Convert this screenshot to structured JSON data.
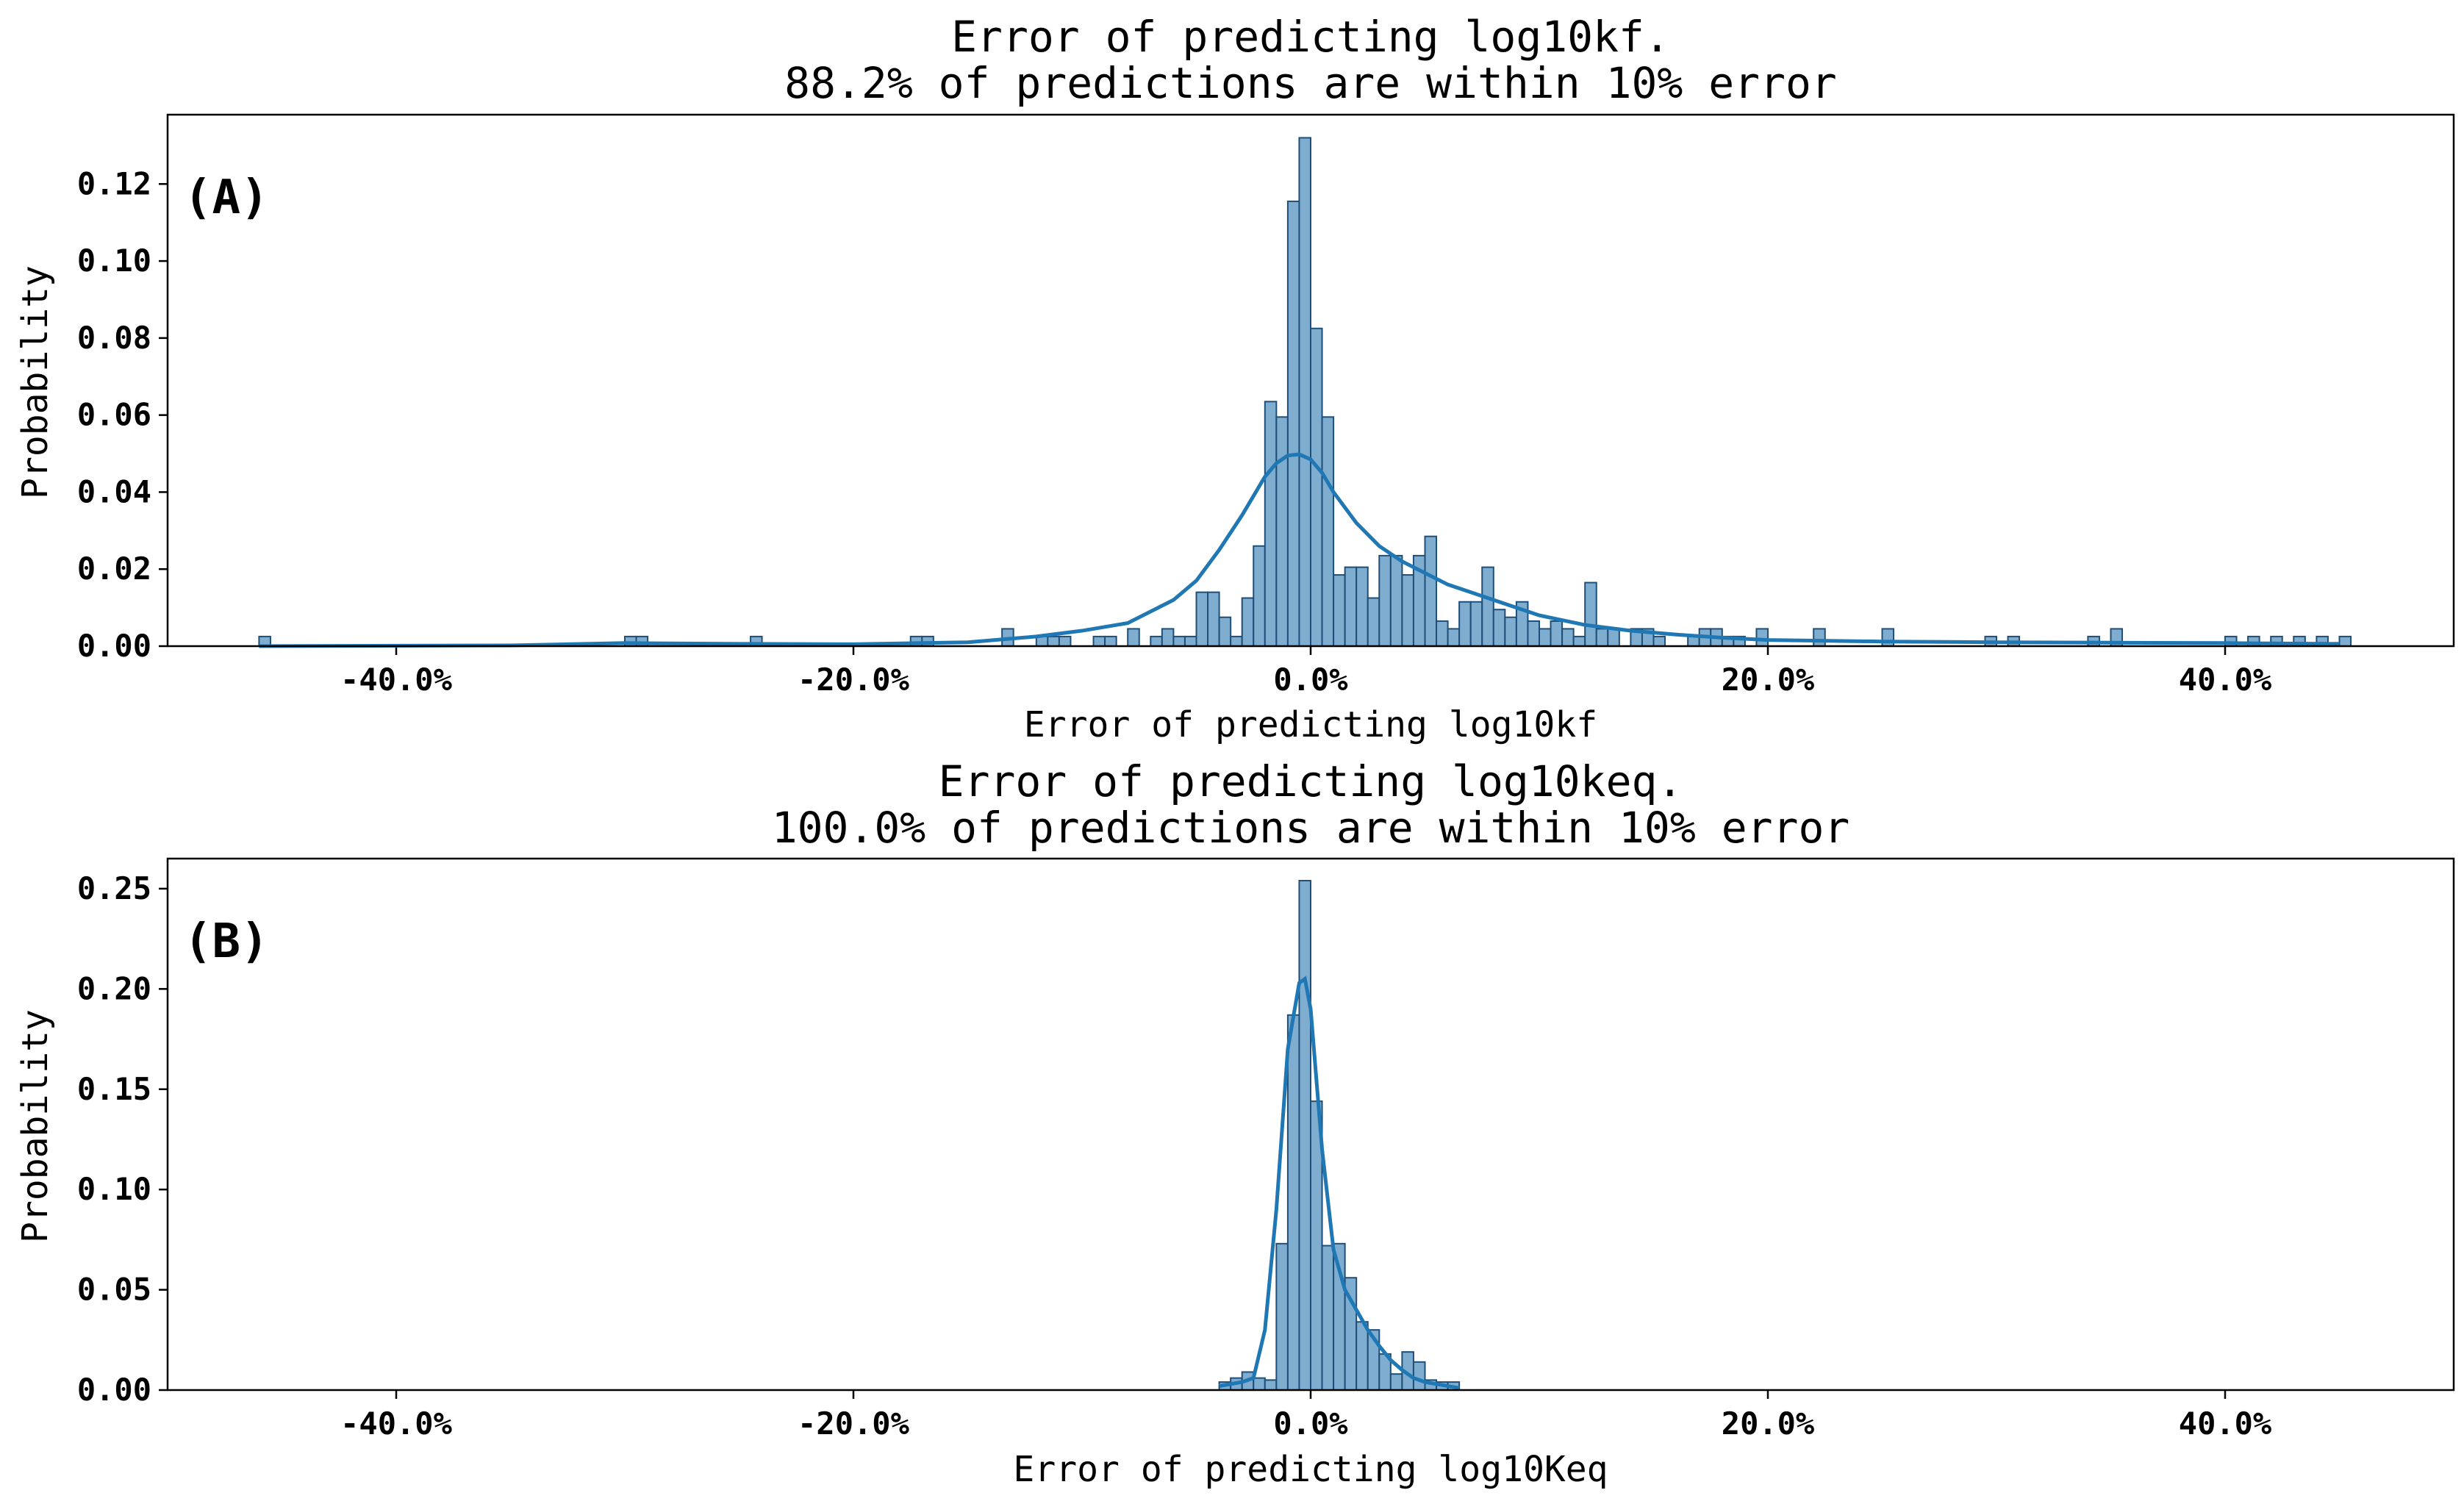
{
  "chart_data": [
    {
      "type": "bar",
      "panel_label": "(A)",
      "title_lines": [
        "Error of predicting log10kf.",
        "88.2% of predictions are within 10% error"
      ],
      "xlabel": "Error of predicting log10kf",
      "ylabel": "Probability",
      "xlim": [
        -50,
        50
      ],
      "ylim": [
        0,
        0.138
      ],
      "xticks": [
        -40,
        -20,
        0,
        20,
        40
      ],
      "xtick_labels": [
        "-40.0%",
        "-20.0%",
        "0.0%",
        "20.0%",
        "40.0%"
      ],
      "yticks": [
        0,
        0.02,
        0.04,
        0.06,
        0.08,
        0.1,
        0.12
      ],
      "ytick_labels": [
        "0.00",
        "0.02",
        "0.04",
        "0.06",
        "0.08",
        "0.10",
        "0.12"
      ],
      "bin_width": 0.5,
      "bins": [
        {
          "x": -46.0,
          "y": 0.0025
        },
        {
          "x": -30.0,
          "y": 0.0025
        },
        {
          "x": -29.5,
          "y": 0.0025
        },
        {
          "x": -24.5,
          "y": 0.0025
        },
        {
          "x": -17.5,
          "y": 0.0025
        },
        {
          "x": -17.0,
          "y": 0.0025
        },
        {
          "x": -13.5,
          "y": 0.0045
        },
        {
          "x": -12.0,
          "y": 0.0025
        },
        {
          "x": -11.5,
          "y": 0.0025
        },
        {
          "x": -11.0,
          "y": 0.0025
        },
        {
          "x": -9.5,
          "y": 0.0025
        },
        {
          "x": -9.0,
          "y": 0.0025
        },
        {
          "x": -8.0,
          "y": 0.0045
        },
        {
          "x": -7.0,
          "y": 0.0025
        },
        {
          "x": -6.5,
          "y": 0.0045
        },
        {
          "x": -6.0,
          "y": 0.0025
        },
        {
          "x": -5.5,
          "y": 0.0025
        },
        {
          "x": -5.0,
          "y": 0.014
        },
        {
          "x": -4.5,
          "y": 0.014
        },
        {
          "x": -4.0,
          "y": 0.0075
        },
        {
          "x": -3.5,
          "y": 0.0025
        },
        {
          "x": -3.0,
          "y": 0.0125
        },
        {
          "x": -2.5,
          "y": 0.026
        },
        {
          "x": -2.0,
          "y": 0.0635
        },
        {
          "x": -1.5,
          "y": 0.0595
        },
        {
          "x": -1.0,
          "y": 0.1155
        },
        {
          "x": -0.5,
          "y": 0.132
        },
        {
          "x": 0.0,
          "y": 0.0825
        },
        {
          "x": 0.5,
          "y": 0.0595
        },
        {
          "x": 1.0,
          "y": 0.0185
        },
        {
          "x": 1.5,
          "y": 0.0205
        },
        {
          "x": 2.0,
          "y": 0.0205
        },
        {
          "x": 2.5,
          "y": 0.0125
        },
        {
          "x": 3.0,
          "y": 0.0235
        },
        {
          "x": 3.5,
          "y": 0.0235
        },
        {
          "x": 4.0,
          "y": 0.0185
        },
        {
          "x": 4.5,
          "y": 0.0235
        },
        {
          "x": 5.0,
          "y": 0.0285
        },
        {
          "x": 5.5,
          "y": 0.0065
        },
        {
          "x": 6.0,
          "y": 0.0045
        },
        {
          "x": 6.5,
          "y": 0.0115
        },
        {
          "x": 7.0,
          "y": 0.0115
        },
        {
          "x": 7.5,
          "y": 0.0205
        },
        {
          "x": 8.0,
          "y": 0.0095
        },
        {
          "x": 8.5,
          "y": 0.0075
        },
        {
          "x": 9.0,
          "y": 0.0115
        },
        {
          "x": 9.5,
          "y": 0.0065
        },
        {
          "x": 10.0,
          "y": 0.0045
        },
        {
          "x": 10.5,
          "y": 0.0065
        },
        {
          "x": 11.0,
          "y": 0.0045
        },
        {
          "x": 11.5,
          "y": 0.0025
        },
        {
          "x": 12.0,
          "y": 0.0165
        },
        {
          "x": 12.5,
          "y": 0.0045
        },
        {
          "x": 13.0,
          "y": 0.0045
        },
        {
          "x": 14.0,
          "y": 0.0045
        },
        {
          "x": 14.5,
          "y": 0.0045
        },
        {
          "x": 15.0,
          "y": 0.0025
        },
        {
          "x": 16.5,
          "y": 0.0025
        },
        {
          "x": 17.0,
          "y": 0.0045
        },
        {
          "x": 17.5,
          "y": 0.0045
        },
        {
          "x": 18.0,
          "y": 0.0025
        },
        {
          "x": 18.5,
          "y": 0.0025
        },
        {
          "x": 19.5,
          "y": 0.0045
        },
        {
          "x": 22.0,
          "y": 0.0045
        },
        {
          "x": 25.0,
          "y": 0.0045
        },
        {
          "x": 29.5,
          "y": 0.0025
        },
        {
          "x": 30.5,
          "y": 0.0025
        },
        {
          "x": 34.0,
          "y": 0.0025
        },
        {
          "x": 35.0,
          "y": 0.0045
        },
        {
          "x": 40.0,
          "y": 0.0025
        },
        {
          "x": 41.0,
          "y": 0.0025
        },
        {
          "x": 42.0,
          "y": 0.0025
        },
        {
          "x": 43.0,
          "y": 0.0025
        },
        {
          "x": 44.0,
          "y": 0.0025
        },
        {
          "x": 45.0,
          "y": 0.0025
        }
      ],
      "kde": {
        "x": [
          -46,
          -35,
          -30,
          -25,
          -20,
          -15,
          -12,
          -10,
          -8,
          -6,
          -5,
          -4,
          -3,
          -2,
          -1.5,
          -1,
          -0.5,
          0,
          0.5,
          1,
          2,
          3,
          4,
          5,
          6,
          7,
          8,
          10,
          12,
          14,
          16,
          18,
          20,
          25,
          30,
          35,
          40,
          45
        ],
        "y": [
          0.0,
          0.0002,
          0.0008,
          0.0006,
          0.0005,
          0.001,
          0.0025,
          0.004,
          0.006,
          0.012,
          0.017,
          0.025,
          0.034,
          0.044,
          0.0475,
          0.0495,
          0.0498,
          0.0485,
          0.045,
          0.04,
          0.032,
          0.026,
          0.022,
          0.019,
          0.016,
          0.014,
          0.012,
          0.008,
          0.0055,
          0.004,
          0.003,
          0.0022,
          0.0016,
          0.0012,
          0.001,
          0.0009,
          0.0008,
          0.0006
        ]
      },
      "color": "#1f77b4"
    },
    {
      "type": "bar",
      "panel_label": "(B)",
      "title_lines": [
        "Error of predicting log10keq.",
        "100.0% of predictions are within 10% error"
      ],
      "xlabel": "Error of predicting log10Keq",
      "ylabel": "Probability",
      "xlim": [
        -50,
        50
      ],
      "ylim": [
        0,
        0.265
      ],
      "xticks": [
        -40,
        -20,
        0,
        20,
        40
      ],
      "xtick_labels": [
        "-40.0%",
        "-20.0%",
        "0.0%",
        "20.0%",
        "40.0%"
      ],
      "yticks": [
        0,
        0.05,
        0.1,
        0.15,
        0.2,
        0.25
      ],
      "ytick_labels": [
        "0.00",
        "0.05",
        "0.10",
        "0.15",
        "0.20",
        "0.25"
      ],
      "bin_width": 0.5,
      "bins": [
        {
          "x": -4.0,
          "y": 0.004
        },
        {
          "x": -3.5,
          "y": 0.006
        },
        {
          "x": -3.0,
          "y": 0.009
        },
        {
          "x": -2.5,
          "y": 0.006
        },
        {
          "x": -2.0,
          "y": 0.005
        },
        {
          "x": -1.5,
          "y": 0.073
        },
        {
          "x": -1.0,
          "y": 0.187
        },
        {
          "x": -0.5,
          "y": 0.254
        },
        {
          "x": 0.0,
          "y": 0.144
        },
        {
          "x": 0.5,
          "y": 0.072
        },
        {
          "x": 1.0,
          "y": 0.073
        },
        {
          "x": 1.5,
          "y": 0.056
        },
        {
          "x": 2.0,
          "y": 0.034
        },
        {
          "x": 2.5,
          "y": 0.03
        },
        {
          "x": 3.0,
          "y": 0.018
        },
        {
          "x": 3.5,
          "y": 0.008
        },
        {
          "x": 4.0,
          "y": 0.019
        },
        {
          "x": 4.5,
          "y": 0.014
        },
        {
          "x": 5.0,
          "y": 0.005
        },
        {
          "x": 5.5,
          "y": 0.004
        },
        {
          "x": 6.0,
          "y": 0.004
        }
      ],
      "kde": {
        "x": [
          -4,
          -3,
          -2.5,
          -2,
          -1.5,
          -1,
          -0.5,
          -0.25,
          0,
          0.5,
          1,
          1.5,
          2,
          2.5,
          3,
          3.5,
          4,
          4.5,
          5,
          5.5,
          6,
          6.5
        ],
        "y": [
          0.002,
          0.004,
          0.006,
          0.03,
          0.09,
          0.17,
          0.203,
          0.205,
          0.19,
          0.12,
          0.07,
          0.05,
          0.04,
          0.03,
          0.022,
          0.015,
          0.01,
          0.006,
          0.004,
          0.003,
          0.002,
          0.001
        ]
      },
      "color": "#1f77b4"
    }
  ]
}
